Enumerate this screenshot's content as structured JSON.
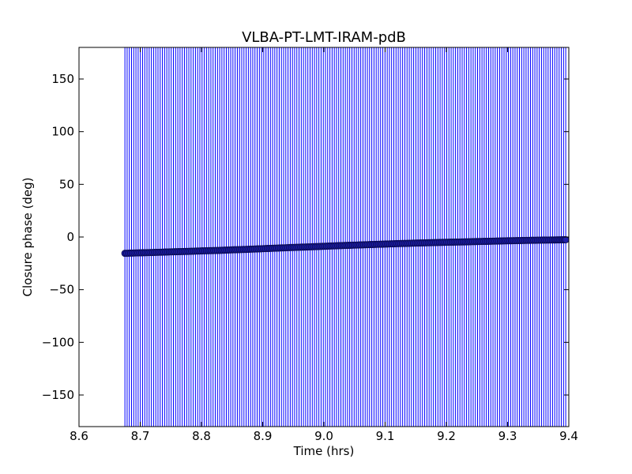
{
  "chart_data": {
    "type": "scatter",
    "title": "VLBA-PT-LMT-IRAM-pdB",
    "xlabel": "Time (hrs)",
    "ylabel": "Closure phase (deg)",
    "xlim": [
      8.6,
      9.4
    ],
    "ylim": [
      -180,
      180
    ],
    "xticks": [
      8.6,
      8.7,
      8.8,
      8.9,
      9.0,
      9.1,
      9.2,
      9.3,
      9.4
    ],
    "xtick_labels": [
      "8.6",
      "8.7",
      "8.8",
      "8.9",
      "9.0",
      "9.1",
      "9.2",
      "9.3",
      "9.4"
    ],
    "yticks": [
      150,
      100,
      50,
      0,
      -50,
      -100,
      -150
    ],
    "ytick_labels": [
      "150",
      "100",
      "50",
      "0",
      "−50",
      "−100",
      "−150"
    ],
    "grid": false,
    "colors": {
      "marker_fill": "#1f1faa",
      "marker_edge": "#0a0a55",
      "errorbar": "#0000ff"
    },
    "series": [
      {
        "marker": "circle",
        "errorbar_half_width_deg": 180,
        "x": [
          8.675,
          8.7,
          8.725,
          8.75,
          8.775,
          8.8,
          8.825,
          8.85,
          8.875,
          8.9,
          8.925,
          8.95,
          8.975,
          9.0,
          9.025,
          9.05,
          9.075,
          9.1,
          9.125,
          9.15,
          9.175,
          9.2,
          9.225,
          9.25,
          9.275,
          9.3,
          9.325,
          9.35,
          9.375,
          9.395
        ],
        "y": [
          -15.5,
          -15.0,
          -14.6,
          -14.1,
          -13.7,
          -13.2,
          -12.8,
          -12.2,
          -11.7,
          -11.1,
          -10.5,
          -9.9,
          -9.4,
          -8.8,
          -8.2,
          -7.7,
          -7.2,
          -6.7,
          -6.2,
          -5.8,
          -5.4,
          -5.0,
          -4.7,
          -4.3,
          -4.0,
          -3.6,
          -3.3,
          -3.0,
          -2.8,
          -2.6
        ]
      }
    ]
  }
}
